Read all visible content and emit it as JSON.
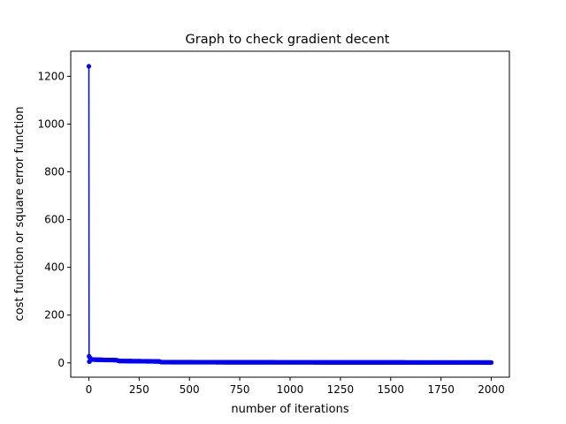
{
  "chart_data": {
    "type": "line",
    "title": "Graph to check gradient decent",
    "xlabel": "number of iterations",
    "ylabel": "cost function or square error function",
    "xlim": [
      -90,
      2090
    ],
    "ylim": [
      -60,
      1305
    ],
    "xticks": [
      0,
      250,
      500,
      750,
      1000,
      1250,
      1500,
      1750,
      2000
    ],
    "yticks": [
      0,
      200,
      400,
      600,
      800,
      1000,
      1200
    ],
    "grid": false,
    "marker": "circle",
    "series": [
      {
        "color": "#0000ff",
        "points": [
          [
            0,
            1242
          ],
          [
            1,
            28
          ],
          [
            2,
            5
          ],
          [
            3,
            24
          ],
          [
            4,
            6
          ],
          [
            5,
            22
          ],
          [
            10,
            15
          ],
          [
            20,
            14
          ],
          [
            40,
            13
          ],
          [
            60,
            13
          ],
          [
            80,
            12
          ],
          [
            100,
            12
          ],
          [
            120,
            12
          ],
          [
            140,
            11
          ],
          [
            150,
            8
          ],
          [
            200,
            7.5
          ],
          [
            250,
            7
          ],
          [
            300,
            6.5
          ],
          [
            350,
            6
          ],
          [
            360,
            3
          ],
          [
            400,
            3
          ],
          [
            500,
            2.8
          ],
          [
            600,
            2.6
          ],
          [
            700,
            2.5
          ],
          [
            800,
            2.4
          ],
          [
            900,
            2.3
          ],
          [
            1000,
            2.2
          ],
          [
            1100,
            2.1
          ],
          [
            1200,
            2.0
          ],
          [
            1300,
            2.0
          ],
          [
            1400,
            1.9
          ],
          [
            1500,
            1.9
          ],
          [
            1600,
            1.8
          ],
          [
            1700,
            1.8
          ],
          [
            1800,
            1.7
          ],
          [
            1900,
            1.7
          ],
          [
            2000,
            1.6
          ]
        ]
      }
    ]
  }
}
